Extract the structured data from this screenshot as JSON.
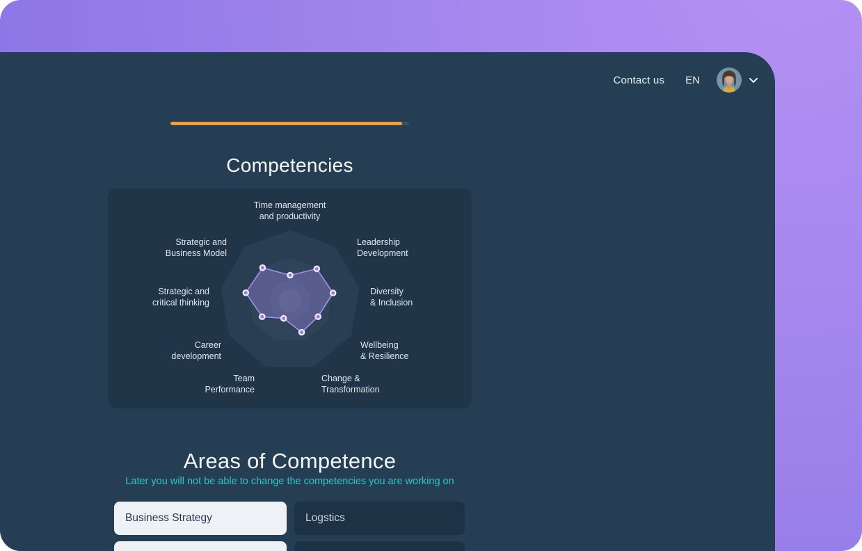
{
  "header": {
    "contact_label": "Contact us",
    "language": "EN"
  },
  "progress": {
    "percent": 97,
    "bar_color": "#F39C42",
    "track_color": "#3E4E60"
  },
  "sections": {
    "competencies_title": "Competencies",
    "areas_title": "Areas of Competence",
    "areas_subtitle": "Later you will not be able to change the competencies you are working on",
    "subtitle_color": "#2FC5C9"
  },
  "areas": {
    "options": [
      {
        "label": "Business Strategy",
        "selected": true
      },
      {
        "label": "Logstics",
        "selected": false
      },
      {
        "label": "",
        "selected": true
      },
      {
        "label": "",
        "selected": false
      }
    ]
  },
  "chart_data": {
    "type": "radar",
    "title": "Competencies",
    "categories": [
      "Time management\nand productivity",
      "Leadership\nDevelopment",
      "Diversity\n& Inclusion",
      "Wellbeing\n& Resilience",
      "Change &\nTransformation",
      "Team\nPerformance",
      "Career\ndevelopment",
      "Strategic and\ncritical thinking",
      "Strategic and\nBusiness Model"
    ],
    "values": [
      36,
      59,
      62,
      46,
      48,
      27,
      46,
      64,
      61
    ],
    "max": 100,
    "sides": 9,
    "ring_ratios": [
      100,
      61,
      30,
      17
    ],
    "ring_colors": [
      "#2A3E53",
      "#2F4458",
      "#374B60",
      "#405468"
    ],
    "series": {
      "fill": "rgba(152,132,224,0.38)",
      "stroke": "#A78FF0",
      "dot_fill": "#8F7BE0",
      "dot_stroke": "#EDE8FB"
    },
    "legend": "none",
    "grid": "concentric-polygons"
  },
  "colors": {
    "page_gradient_start": "#B491F3",
    "page_gradient_end": "#8370E2",
    "panel_bg": "#263E54",
    "card_bg": "#213549",
    "heading_text": "#F4F6F8",
    "label_text": "#DFE6ED"
  }
}
